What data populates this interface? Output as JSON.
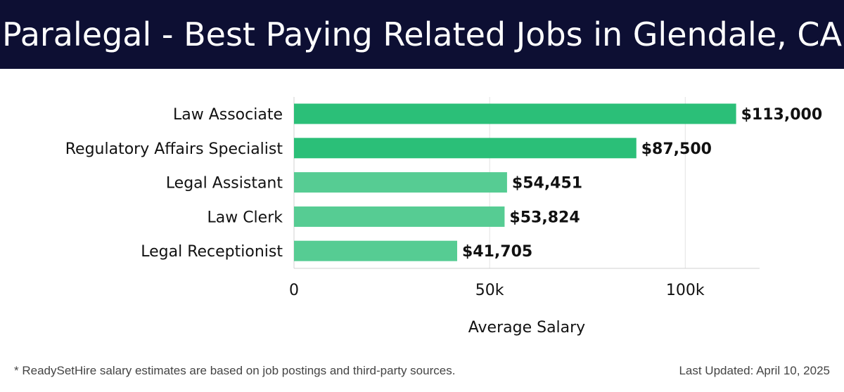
{
  "header": {
    "title": "Paralegal - Best Paying Related Jobs in Glendale, CA"
  },
  "footer": {
    "note": "* ReadySetHire salary estimates are based on job postings and third-party sources.",
    "updated": "Last Updated: April 10, 2025"
  },
  "colors": {
    "header_bg": "#0d0f33",
    "bar_dark": "#2bbf78",
    "bar_light": "#56cc93",
    "grid": "#e2e2e2",
    "text": "#111111"
  },
  "chart_data": {
    "type": "bar",
    "orientation": "horizontal",
    "categories": [
      "Law Associate",
      "Regulatory Affairs Specialist",
      "Legal Assistant",
      "Law Clerk",
      "Legal Receptionist"
    ],
    "values": [
      113000,
      87500,
      54451,
      53824,
      41705
    ],
    "value_labels": [
      "$113,000",
      "$87,500",
      "$54,451",
      "$53,824",
      "$41,705"
    ],
    "xlabel": "Average Salary",
    "ylabel": "",
    "xlim": [
      0,
      119000
    ],
    "xticks": [
      0,
      50000,
      100000
    ],
    "xtick_labels": [
      "0",
      "50k",
      "100k"
    ],
    "grid": true
  }
}
